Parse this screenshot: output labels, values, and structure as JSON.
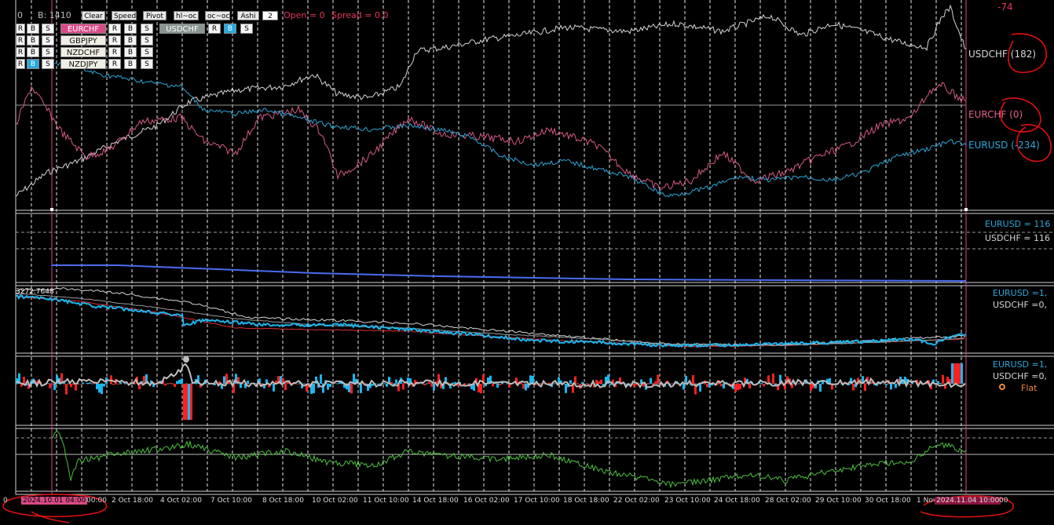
{
  "toolbar": {
    "counter": "0",
    "bars_label": "B: 1410",
    "clear": "Clear",
    "speed": "Speed",
    "pivot": "Pivot",
    "hl_oc": "hl~oc",
    "oc_oc": "oc~oc",
    "ashi": "Ashi",
    "ashi_value": "2",
    "open_label": "Open = 0",
    "spread_label": "Spread = 0.0",
    "top_right_value": "-74"
  },
  "symbols": {
    "row1_left": [
      "R",
      "B",
      "S"
    ],
    "row2_left": [
      "R",
      "B",
      "S"
    ],
    "row3_left": [
      "R",
      "B",
      "S"
    ],
    "row4_left": [
      "R",
      "B",
      "S"
    ],
    "pairs": [
      "EURCHF",
      "GBPJPY",
      "NZDCHF",
      "NZDJPY",
      "USDCHF"
    ],
    "rbs": [
      "R",
      "B",
      "S"
    ]
  },
  "main_labels": {
    "usdchf": "USDCHF (182)",
    "eurchf": "EURCHF (0)",
    "eurusd": "EURUSD (-234)"
  },
  "pane2_labels": {
    "eurusd": "EURUSD = 116",
    "usdchf": "USDCHF = 116"
  },
  "pane3_labels": {
    "value": "3272.7648",
    "eurusd": "EURUSD =1,",
    "usdchf": "USDCHF =0,"
  },
  "pane4_labels": {
    "eurusd": "EURUSD =1,",
    "usdchf": "USDCHF =0,",
    "flat": "Flat"
  },
  "x_axis": {
    "start_highlight": "2024.10.01 04:00",
    "start_rest": "00:00",
    "labels": [
      "2 Oct 18:00",
      "4 Oct 02:00",
      "7 Oct 10:00",
      "8 Oct 18:00",
      "10 Oct 02:00",
      "11 Oct 10:00",
      "14 Oct 18:00",
      "16 Oct 02:00",
      "17 Oct 10:00",
      "18 Oct 18:00",
      "22 Oct 02:00",
      "23 Oct 10:00",
      "24 Oct 18:00",
      "28 Oct 02:00",
      "29 Oct 10:00",
      "30 Oct 18:00",
      "1 Nov"
    ],
    "end_highlight": "2024.11.04 10:00",
    "end_rest": "00"
  },
  "colors": {
    "usdchf": "#d6d6d6",
    "eurchf": "#d8598a",
    "eurusd": "#2aa7d8",
    "blue_line": "#4a6cf0",
    "green": "#4cc23c",
    "red_fill": "#ff2020",
    "cyan_fill": "#1ab7f0",
    "highlight_pink": "#d84b86",
    "annotation_red": "#e01010"
  }
}
